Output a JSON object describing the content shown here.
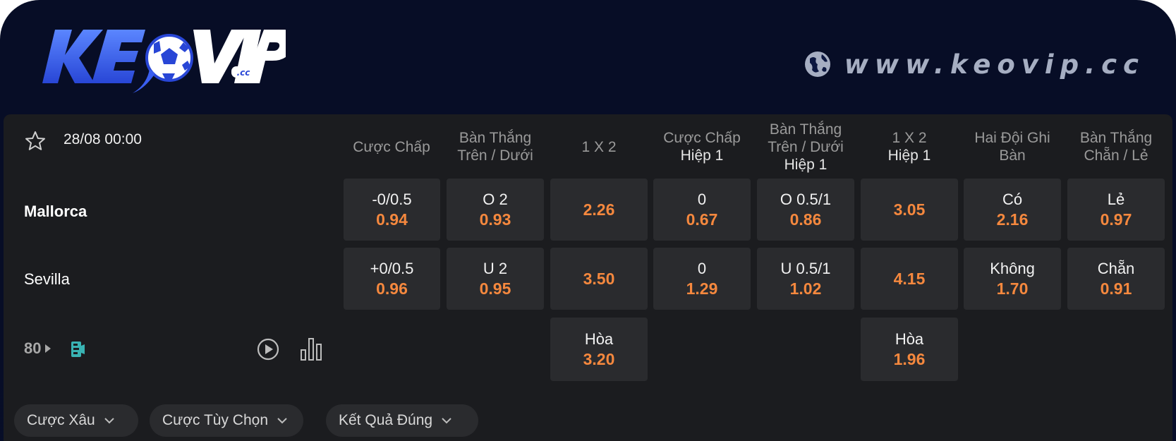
{
  "site": {
    "url": "www.keovip.cc"
  },
  "logo": {
    "main": "KEOVIP",
    "tld": ".cc"
  },
  "match": {
    "datetime": "28/08 00:00",
    "more_markets_count": "80",
    "home_team": "Mallorca",
    "away_team": "Sevilla"
  },
  "headers": {
    "handicap": "Cược Chấp",
    "ou_line1": "Bàn Thắng",
    "ou_line2": "Trên / Dưới",
    "x12": "1 X 2",
    "h1_handicap_line1": "Cược Chấp",
    "h1_handicap_line2": "Hiệp 1",
    "h1_ou_line1": "Bàn Thắng",
    "h1_ou_line2": "Trên / Dưới",
    "h1_ou_line3": "Hiệp 1",
    "h1_x12_line1": "1 X 2",
    "h1_x12_line2": "Hiệp 1",
    "btts_line1": "Hai Đội Ghi",
    "btts_line2": "Bàn",
    "oddeven_line1": "Bàn Thắng",
    "oddeven_line2": "Chẵn / Lẻ"
  },
  "odds": {
    "home": {
      "handicap": {
        "label": "-0/0.5",
        "odd": "0.94"
      },
      "ou": {
        "label": "O 2",
        "odd": "0.93"
      },
      "x12": {
        "odd": "2.26"
      },
      "h1_handicap": {
        "label": "0",
        "odd": "0.67"
      },
      "h1_ou": {
        "label": "O 0.5/1",
        "odd": "0.86"
      },
      "h1_x12": {
        "odd": "3.05"
      },
      "btts": {
        "label": "Có",
        "odd": "2.16"
      },
      "oddeven": {
        "label": "Lẻ",
        "odd": "0.97"
      }
    },
    "away": {
      "handicap": {
        "label": "+0/0.5",
        "odd": "0.96"
      },
      "ou": {
        "label": "U 2",
        "odd": "0.95"
      },
      "x12": {
        "odd": "3.50"
      },
      "h1_handicap": {
        "label": "0",
        "odd": "1.29"
      },
      "h1_ou": {
        "label": "U 0.5/1",
        "odd": "1.02"
      },
      "h1_x12": {
        "odd": "4.15"
      },
      "btts": {
        "label": "Không",
        "odd": "1.70"
      },
      "oddeven": {
        "label": "Chẵn",
        "odd": "0.91"
      }
    },
    "draw": {
      "x12": {
        "label": "Hòa",
        "odd": "3.20"
      },
      "h1_x12": {
        "label": "Hòa",
        "odd": "1.96"
      }
    }
  },
  "bottom_tabs": [
    "Cược Xâu",
    "Cược Tùy Chọn",
    "Kết Quả Đúng"
  ],
  "colors": {
    "odd": "#f5883e",
    "cell": "#2a2b2e",
    "panel": "#1b1c1f",
    "header_bg": "#070d26"
  },
  "icons": [
    "star-icon",
    "globe-icon",
    "play-icon",
    "stats-icon",
    "chevron-down-icon",
    "stream-icon"
  ]
}
